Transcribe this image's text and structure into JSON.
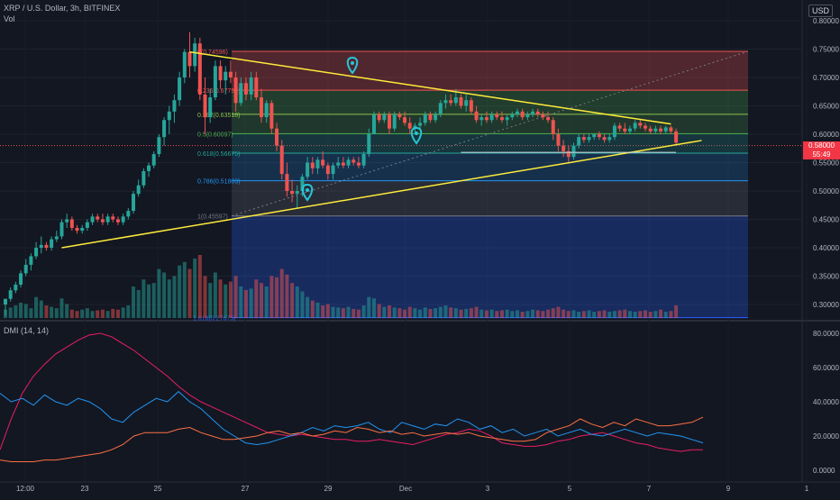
{
  "header": {
    "symbol": "XRP / U.S. Dollar, 3h, BITFINEX",
    "volume_label": "Vol",
    "currency": "USD",
    "price_badge": "0.58000",
    "price_badge_sub": "55:49"
  },
  "indicator": {
    "title": "DMI (14, 14)"
  },
  "colors": {
    "background": "#131722",
    "up": "#26a69a",
    "down": "#ef5350",
    "trendline": "#ffeb3b",
    "dmi_adx": "#e91e63",
    "dmi_plus": "#2196f3",
    "dmi_minus": "#ff7043",
    "marker": "#26c6da"
  },
  "chart_data": [
    {
      "type": "candlestick",
      "price_axis": {
        "range": [
          0.27,
          0.83
        ],
        "ticks": [
          "0.80000",
          "0.75000",
          "0.70000",
          "0.65000",
          "0.60000",
          "0.55000",
          "0.50000",
          "0.45000",
          "0.40000",
          "0.35000",
          "0.30000"
        ]
      },
      "time_axis": {
        "ticks": [
          "12:00",
          "23",
          "25",
          "27",
          "29",
          "Dec",
          "3",
          "5",
          "7",
          "9",
          "1"
        ]
      },
      "fibonacci": [
        {
          "level": "0",
          "price": 0.74596,
          "label": "0(0.74596)",
          "color": "#ef5350"
        },
        {
          "level": "0.236",
          "price": 0.67752,
          "label": "0.236(0.67752)",
          "color": "#ef5350"
        },
        {
          "level": "0.382",
          "price": 0.63518,
          "label": "0.382(0.63518)",
          "color": "#8bc34a"
        },
        {
          "level": "0.5",
          "price": 0.60097,
          "label": "0.5(0.60097)",
          "color": "#4caf50"
        },
        {
          "level": "0.618",
          "price": 0.56675,
          "label": "0.618(0.56675)",
          "color": "#26a69a"
        },
        {
          "level": "0.786",
          "price": 0.51803,
          "label": "0.786(0.51803)",
          "color": "#2196f3"
        },
        {
          "level": "1",
          "price": 0.45597,
          "label": "1(0.45597)",
          "color": "#787b86"
        },
        {
          "level": "1.618",
          "price": 0.27675,
          "label": "1.618(0.27675)",
          "color": "#2962ff"
        }
      ],
      "candles": [
        [
          0.3,
          0.31,
          0.28,
          0.31
        ],
        [
          0.31,
          0.33,
          0.305,
          0.325
        ],
        [
          0.325,
          0.34,
          0.32,
          0.335
        ],
        [
          0.335,
          0.36,
          0.33,
          0.355
        ],
        [
          0.355,
          0.38,
          0.35,
          0.37
        ],
        [
          0.37,
          0.39,
          0.36,
          0.385
        ],
        [
          0.385,
          0.41,
          0.38,
          0.4
        ],
        [
          0.4,
          0.42,
          0.39,
          0.405
        ],
        [
          0.405,
          0.41,
          0.395,
          0.4
        ],
        [
          0.4,
          0.42,
          0.395,
          0.415
        ],
        [
          0.415,
          0.43,
          0.41,
          0.42
        ],
        [
          0.42,
          0.45,
          0.415,
          0.445
        ],
        [
          0.445,
          0.46,
          0.435,
          0.45
        ],
        [
          0.45,
          0.455,
          0.43,
          0.435
        ],
        [
          0.435,
          0.44,
          0.425,
          0.43
        ],
        [
          0.43,
          0.44,
          0.425,
          0.435
        ],
        [
          0.435,
          0.45,
          0.43,
          0.445
        ],
        [
          0.445,
          0.46,
          0.44,
          0.455
        ],
        [
          0.455,
          0.46,
          0.445,
          0.45
        ],
        [
          0.45,
          0.46,
          0.44,
          0.445
        ],
        [
          0.445,
          0.46,
          0.44,
          0.455
        ],
        [
          0.455,
          0.46,
          0.445,
          0.45
        ],
        [
          0.45,
          0.455,
          0.44,
          0.445
        ],
        [
          0.445,
          0.46,
          0.44,
          0.455
        ],
        [
          0.455,
          0.47,
          0.45,
          0.465
        ],
        [
          0.465,
          0.5,
          0.46,
          0.495
        ],
        [
          0.495,
          0.52,
          0.49,
          0.51
        ],
        [
          0.51,
          0.54,
          0.505,
          0.535
        ],
        [
          0.535,
          0.55,
          0.525,
          0.545
        ],
        [
          0.545,
          0.57,
          0.54,
          0.565
        ],
        [
          0.565,
          0.6,
          0.56,
          0.595
        ],
        [
          0.595,
          0.63,
          0.58,
          0.625
        ],
        [
          0.625,
          0.65,
          0.6,
          0.64
        ],
        [
          0.64,
          0.67,
          0.62,
          0.66
        ],
        [
          0.66,
          0.71,
          0.65,
          0.7
        ],
        [
          0.7,
          0.75,
          0.69,
          0.745
        ],
        [
          0.745,
          0.78,
          0.7,
          0.72
        ],
        [
          0.72,
          0.77,
          0.71,
          0.76
        ],
        [
          0.76,
          0.77,
          0.66,
          0.67
        ],
        [
          0.67,
          0.7,
          0.6,
          0.63
        ],
        [
          0.63,
          0.68,
          0.62,
          0.665
        ],
        [
          0.665,
          0.73,
          0.66,
          0.72
        ],
        [
          0.72,
          0.73,
          0.68,
          0.695
        ],
        [
          0.695,
          0.72,
          0.67,
          0.71
        ],
        [
          0.71,
          0.73,
          0.69,
          0.7
        ],
        [
          0.7,
          0.71,
          0.64,
          0.655
        ],
        [
          0.655,
          0.7,
          0.65,
          0.69
        ],
        [
          0.69,
          0.7,
          0.66,
          0.67
        ],
        [
          0.67,
          0.71,
          0.66,
          0.7
        ],
        [
          0.7,
          0.71,
          0.66,
          0.665
        ],
        [
          0.665,
          0.68,
          0.62,
          0.63
        ],
        [
          0.63,
          0.66,
          0.62,
          0.655
        ],
        [
          0.655,
          0.66,
          0.6,
          0.61
        ],
        [
          0.61,
          0.62,
          0.57,
          0.58
        ],
        [
          0.58,
          0.59,
          0.52,
          0.53
        ],
        [
          0.53,
          0.55,
          0.49,
          0.5
        ],
        [
          0.5,
          0.52,
          0.48,
          0.495
        ],
        [
          0.495,
          0.51,
          0.47,
          0.5
        ],
        [
          0.5,
          0.53,
          0.49,
          0.525
        ],
        [
          0.525,
          0.56,
          0.52,
          0.55
        ],
        [
          0.55,
          0.56,
          0.53,
          0.54
        ],
        [
          0.54,
          0.56,
          0.53,
          0.555
        ],
        [
          0.555,
          0.57,
          0.54,
          0.545
        ],
        [
          0.545,
          0.55,
          0.52,
          0.53
        ],
        [
          0.53,
          0.55,
          0.52,
          0.545
        ],
        [
          0.545,
          0.56,
          0.54,
          0.55
        ],
        [
          0.55,
          0.56,
          0.54,
          0.545
        ],
        [
          0.545,
          0.56,
          0.54,
          0.555
        ],
        [
          0.555,
          0.56,
          0.545,
          0.55
        ],
        [
          0.55,
          0.56,
          0.54,
          0.545
        ],
        [
          0.545,
          0.57,
          0.54,
          0.565
        ],
        [
          0.565,
          0.61,
          0.56,
          0.6
        ],
        [
          0.6,
          0.64,
          0.6,
          0.635
        ],
        [
          0.635,
          0.64,
          0.62,
          0.625
        ],
        [
          0.625,
          0.64,
          0.62,
          0.635
        ],
        [
          0.635,
          0.64,
          0.6,
          0.61
        ],
        [
          0.61,
          0.64,
          0.605,
          0.635
        ],
        [
          0.635,
          0.64,
          0.625,
          0.63
        ],
        [
          0.63,
          0.64,
          0.615,
          0.62
        ],
        [
          0.62,
          0.63,
          0.6,
          0.61
        ],
        [
          0.61,
          0.62,
          0.6,
          0.615
        ],
        [
          0.615,
          0.63,
          0.61,
          0.62
        ],
        [
          0.62,
          0.64,
          0.615,
          0.635
        ],
        [
          0.635,
          0.64,
          0.62,
          0.625
        ],
        [
          0.625,
          0.64,
          0.62,
          0.635
        ],
        [
          0.635,
          0.66,
          0.63,
          0.655
        ],
        [
          0.655,
          0.67,
          0.645,
          0.66
        ],
        [
          0.66,
          0.67,
          0.65,
          0.655
        ],
        [
          0.655,
          0.68,
          0.65,
          0.665
        ],
        [
          0.665,
          0.67,
          0.645,
          0.65
        ],
        [
          0.65,
          0.67,
          0.64,
          0.66
        ],
        [
          0.66,
          0.665,
          0.635,
          0.64
        ],
        [
          0.64,
          0.65,
          0.62,
          0.625
        ],
        [
          0.625,
          0.635,
          0.615,
          0.63
        ],
        [
          0.63,
          0.64,
          0.62,
          0.625
        ],
        [
          0.625,
          0.64,
          0.62,
          0.635
        ],
        [
          0.635,
          0.64,
          0.625,
          0.63
        ],
        [
          0.63,
          0.64,
          0.62,
          0.625
        ],
        [
          0.625,
          0.635,
          0.615,
          0.63
        ],
        [
          0.63,
          0.64,
          0.625,
          0.635
        ],
        [
          0.635,
          0.645,
          0.63,
          0.64
        ],
        [
          0.64,
          0.645,
          0.625,
          0.63
        ],
        [
          0.63,
          0.64,
          0.625,
          0.635
        ],
        [
          0.635,
          0.645,
          0.63,
          0.64
        ],
        [
          0.64,
          0.645,
          0.63,
          0.635
        ],
        [
          0.635,
          0.64,
          0.625,
          0.63
        ],
        [
          0.63,
          0.64,
          0.62,
          0.625
        ],
        [
          0.625,
          0.63,
          0.59,
          0.6
        ],
        [
          0.6,
          0.61,
          0.57,
          0.58
        ],
        [
          0.58,
          0.59,
          0.56,
          0.57
        ],
        [
          0.57,
          0.58,
          0.55,
          0.56
        ],
        [
          0.56,
          0.585,
          0.555,
          0.58
        ],
        [
          0.58,
          0.6,
          0.575,
          0.595
        ],
        [
          0.595,
          0.6,
          0.585,
          0.59
        ],
        [
          0.59,
          0.6,
          0.585,
          0.595
        ],
        [
          0.595,
          0.6,
          0.59,
          0.6
        ],
        [
          0.6,
          0.605,
          0.59,
          0.595
        ],
        [
          0.595,
          0.6,
          0.585,
          0.59
        ],
        [
          0.59,
          0.6,
          0.585,
          0.595
        ],
        [
          0.595,
          0.62,
          0.59,
          0.615
        ],
        [
          0.615,
          0.62,
          0.605,
          0.61
        ],
        [
          0.61,
          0.62,
          0.6,
          0.605
        ],
        [
          0.605,
          0.615,
          0.6,
          0.61
        ],
        [
          0.61,
          0.625,
          0.605,
          0.62
        ],
        [
          0.62,
          0.625,
          0.61,
          0.615
        ],
        [
          0.615,
          0.62,
          0.605,
          0.61
        ],
        [
          0.61,
          0.615,
          0.6,
          0.605
        ],
        [
          0.605,
          0.615,
          0.6,
          0.61
        ],
        [
          0.61,
          0.615,
          0.6,
          0.605
        ],
        [
          0.605,
          0.615,
          0.6,
          0.612
        ],
        [
          0.612,
          0.615,
          0.6,
          0.605
        ],
        [
          0.605,
          0.61,
          0.58,
          0.585
        ]
      ],
      "volume": [
        12,
        15,
        18,
        22,
        20,
        14,
        30,
        25,
        18,
        16,
        14,
        28,
        20,
        12,
        10,
        12,
        14,
        10,
        11,
        12,
        10,
        13,
        12,
        15,
        18,
        45,
        40,
        55,
        48,
        50,
        70,
        65,
        55,
        60,
        75,
        80,
        70,
        85,
        90,
        60,
        50,
        65,
        55,
        48,
        52,
        60,
        45,
        40,
        42,
        55,
        50,
        45,
        60,
        58,
        70,
        62,
        50,
        45,
        38,
        30,
        25,
        22,
        18,
        20,
        16,
        15,
        14,
        16,
        13,
        12,
        18,
        30,
        28,
        20,
        16,
        18,
        15,
        14,
        12,
        16,
        14,
        12,
        15,
        13,
        14,
        16,
        18,
        15,
        14,
        12,
        13,
        14,
        16,
        12,
        11,
        12,
        10,
        11,
        12,
        10,
        11,
        9,
        10,
        12,
        11,
        10,
        12,
        14,
        16,
        12,
        10,
        11,
        9,
        10,
        11,
        9,
        10,
        11,
        9,
        10,
        11,
        12,
        10,
        9,
        10,
        11,
        9,
        10,
        12,
        9,
        10,
        18
      ],
      "trendlines": [
        {
          "name": "upper",
          "from": [
            0.745,
            36
          ],
          "to": [
            0.618,
            130
          ]
        },
        {
          "name": "lower",
          "from": [
            0.4,
            11
          ],
          "to": [
            0.589,
            136
          ]
        },
        {
          "name": "support",
          "from": [
            0.568,
            89
          ],
          "to": [
            0.568,
            131
          ]
        }
      ]
    },
    {
      "type": "line",
      "title": "DMI (14, 14)",
      "y_axis": {
        "range": [
          -5,
          85
        ],
        "ticks": [
          "80.0000",
          "60.0000",
          "40.0000",
          "20.0000",
          "0.0000"
        ]
      },
      "series": [
        {
          "key": "adx",
          "values": [
            12,
            30,
            45,
            55,
            62,
            68,
            72,
            76,
            79,
            80,
            78,
            74,
            70,
            65,
            60,
            55,
            49,
            44,
            40,
            37,
            34,
            31,
            28,
            25,
            22,
            21,
            20,
            21,
            20,
            19,
            18,
            18,
            17,
            17,
            18,
            17,
            16,
            15,
            17,
            19,
            21,
            22,
            24,
            23,
            20,
            16,
            15,
            14,
            14,
            15,
            17,
            18,
            20,
            21,
            22,
            20,
            18,
            16,
            15,
            13,
            12,
            11,
            12,
            12
          ]
        },
        {
          "key": "plus",
          "values": [
            45,
            40,
            42,
            38,
            44,
            40,
            38,
            42,
            40,
            36,
            30,
            28,
            34,
            38,
            42,
            40,
            46,
            40,
            36,
            30,
            24,
            20,
            16,
            15,
            16,
            18,
            20,
            22,
            25,
            23,
            26,
            25,
            26,
            28,
            24,
            22,
            28,
            26,
            24,
            27,
            26,
            30,
            28,
            24,
            26,
            22,
            24,
            20,
            22,
            24,
            20,
            22,
            24,
            21,
            20,
            22,
            24,
            22,
            20,
            22,
            21,
            20,
            18,
            16
          ]
        },
        {
          "key": "minus",
          "values": [
            6,
            5,
            5,
            5,
            6,
            6,
            7,
            8,
            9,
            10,
            12,
            15,
            20,
            22,
            22,
            22,
            24,
            25,
            22,
            20,
            18,
            18,
            19,
            20,
            22,
            23,
            21,
            22,
            20,
            21,
            23,
            22,
            25,
            24,
            22,
            23,
            21,
            22,
            20,
            21,
            22,
            21,
            22,
            20,
            19,
            18,
            17,
            17,
            18,
            22,
            24,
            26,
            30,
            27,
            25,
            28,
            26,
            30,
            28,
            26,
            26,
            27,
            28,
            31
          ]
        }
      ]
    }
  ]
}
